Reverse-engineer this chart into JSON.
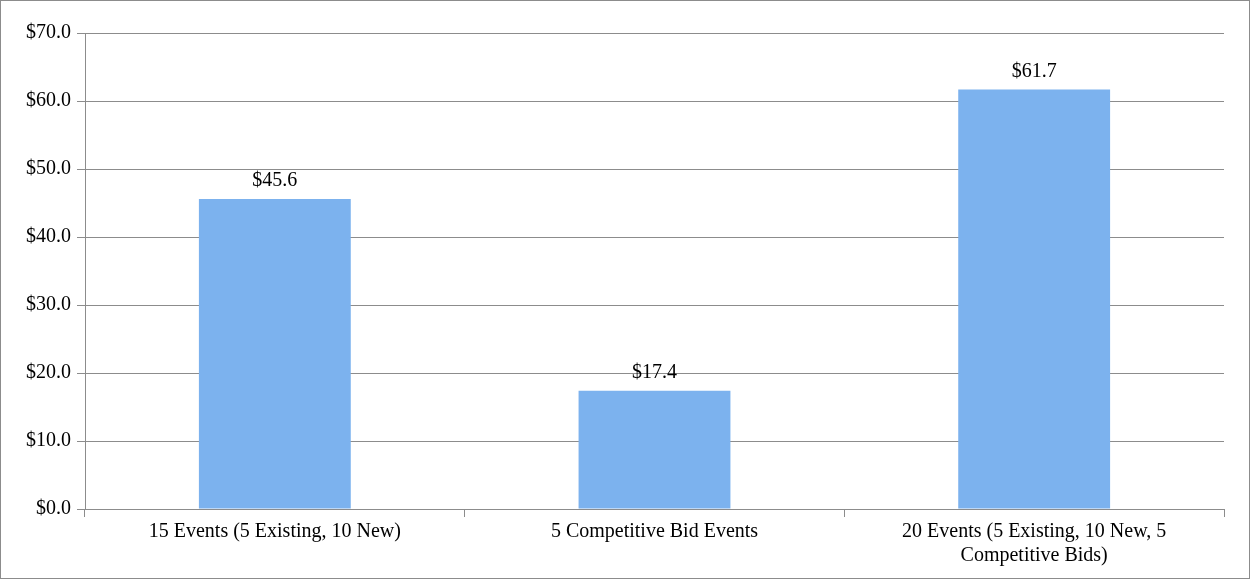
{
  "chart_data": {
    "type": "bar",
    "categories": [
      "15 Events (5 Existing, 10 New)",
      "5 Competitive Bid Events",
      "20 Events (5 Existing, 10 New, 5 Competitive Bids)"
    ],
    "values": [
      45.6,
      17.4,
      61.7
    ],
    "color": "#7cb2ee",
    "value_labels": [
      "$45.6",
      "$17.4",
      "$61.7"
    ],
    "ylim": [
      0,
      70
    ],
    "yticks": [
      {
        "value": 0,
        "label": "$0.0"
      },
      {
        "value": 10,
        "label": "$10.0"
      },
      {
        "value": 20,
        "label": "$20.0"
      },
      {
        "value": 30,
        "label": "$30.0"
      },
      {
        "value": 40,
        "label": "$40.0"
      },
      {
        "value": 50,
        "label": "$50.0"
      },
      {
        "value": 60,
        "label": "$60.0"
      },
      {
        "value": 70,
        "label": "$70.0"
      }
    ],
    "grid": "y",
    "legend": false
  }
}
